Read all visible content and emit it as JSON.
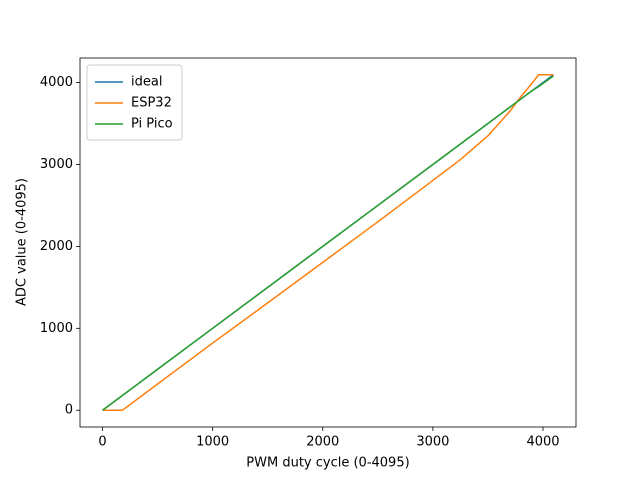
{
  "chart_data": {
    "type": "line",
    "xlabel": "PWM duty cycle (0-4095)",
    "ylabel": "ADC value (0-4095)",
    "x": [
      0,
      180,
      500,
      1000,
      1500,
      2000,
      2500,
      3000,
      3250,
      3500,
      3700,
      3800,
      3900,
      3960,
      4095
    ],
    "series": [
      {
        "name": "ideal",
        "color": "#1f77b4",
        "values": [
          0,
          180,
          500,
          1000,
          1500,
          2000,
          2500,
          3000,
          3250,
          3500,
          3700,
          3800,
          3900,
          3960,
          4095
        ]
      },
      {
        "name": "ESP32",
        "color": "#ff7f0e",
        "values": [
          0,
          0,
          320,
          820,
          1310,
          1805,
          2300,
          2805,
          3060,
          3350,
          3650,
          3830,
          3990,
          4095,
          4095
        ]
      },
      {
        "name": "Pi Pico",
        "color": "#2ca02c",
        "values": [
          0,
          180,
          500,
          1000,
          1500,
          2000,
          2500,
          3000,
          3250,
          3500,
          3700,
          3800,
          3900,
          3950,
          4080
        ]
      }
    ],
    "xlim": [
      -204.75,
      4299.75
    ],
    "ylim": [
      -204.75,
      4299.75
    ],
    "xticks": [
      0,
      1000,
      2000,
      3000,
      4000
    ],
    "yticks": [
      0,
      1000,
      2000,
      3000,
      4000
    ],
    "legend": "upper left"
  }
}
